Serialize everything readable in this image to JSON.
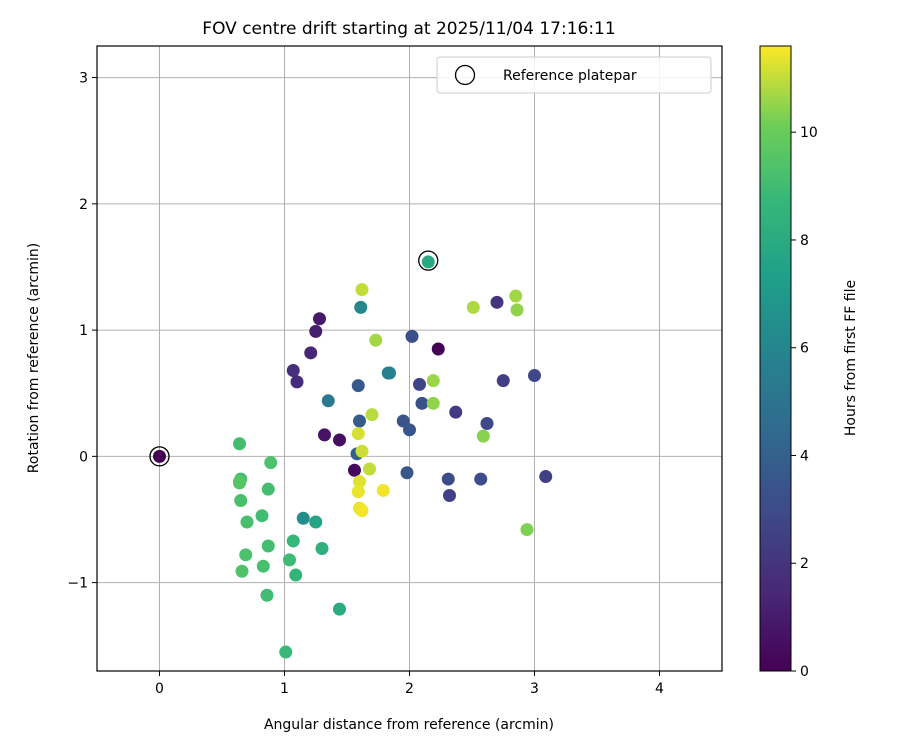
{
  "chart_data": {
    "type": "scatter",
    "title": "FOV centre drift starting at 2025/11/04 17:16:11",
    "xlabel": "Angular distance from reference (arcmin)",
    "ylabel": "Rotation from reference (arcmin)",
    "xlim": [
      -0.5,
      4.5
    ],
    "ylim": [
      -1.7,
      3.25
    ],
    "xticks": [
      0,
      1,
      2,
      3,
      4
    ],
    "yticks": [
      -1,
      0,
      1,
      2,
      3
    ],
    "xtick_labels": [
      "0",
      "1",
      "2",
      "3",
      "4"
    ],
    "ytick_labels": [
      "−1",
      "0",
      "1",
      "2",
      "3"
    ],
    "grid": true,
    "legend": {
      "label": "Reference platepar",
      "location": "top-right",
      "marker": "open-circle"
    },
    "reference_point": {
      "x": 0,
      "y": 0
    },
    "reference_markers": [
      {
        "x": 0,
        "y": 0
      },
      {
        "x": 2.15,
        "y": 1.55
      }
    ],
    "colorbar": {
      "label": "Hours from first FF file",
      "colormap": "viridis",
      "range": [
        0,
        11.6
      ],
      "ticks": [
        0,
        2,
        4,
        6,
        8,
        10
      ],
      "tick_labels": [
        "0",
        "2",
        "4",
        "6",
        "8",
        "10"
      ]
    },
    "points": [
      {
        "x": 0.0,
        "y": 0.0,
        "hours": 0.0
      },
      {
        "x": 2.23,
        "y": 0.85,
        "hours": 0.1
      },
      {
        "x": 1.56,
        "y": -0.11,
        "hours": 0.3
      },
      {
        "x": 1.44,
        "y": 0.13,
        "hours": 0.5
      },
      {
        "x": 1.32,
        "y": 0.17,
        "hours": 0.7
      },
      {
        "x": 1.28,
        "y": 1.09,
        "hours": 0.9
      },
      {
        "x": 1.25,
        "y": 0.99,
        "hours": 1.1
      },
      {
        "x": 1.21,
        "y": 0.82,
        "hours": 1.4
      },
      {
        "x": 1.1,
        "y": 0.59,
        "hours": 1.6
      },
      {
        "x": 1.07,
        "y": 0.68,
        "hours": 1.8
      },
      {
        "x": 2.7,
        "y": 1.22,
        "hours": 2.0
      },
      {
        "x": 2.37,
        "y": 0.35,
        "hours": 2.3
      },
      {
        "x": 3.09,
        "y": -0.16,
        "hours": 2.5
      },
      {
        "x": 2.32,
        "y": -0.31,
        "hours": 2.6
      },
      {
        "x": 2.75,
        "y": 0.6,
        "hours": 2.4
      },
      {
        "x": 2.08,
        "y": 0.57,
        "hours": 2.7
      },
      {
        "x": 3.0,
        "y": 0.64,
        "hours": 2.8
      },
      {
        "x": 2.62,
        "y": 0.26,
        "hours": 2.9
      },
      {
        "x": 2.31,
        "y": -0.18,
        "hours": 3.0
      },
      {
        "x": 2.57,
        "y": -0.18,
        "hours": 3.1
      },
      {
        "x": 2.02,
        "y": 0.95,
        "hours": 3.2
      },
      {
        "x": 2.1,
        "y": 0.42,
        "hours": 3.3
      },
      {
        "x": 1.95,
        "y": 0.28,
        "hours": 3.4
      },
      {
        "x": 2.0,
        "y": 0.21,
        "hours": 3.5
      },
      {
        "x": 1.98,
        "y": -0.13,
        "hours": 3.6
      },
      {
        "x": 1.59,
        "y": 0.56,
        "hours": 3.7
      },
      {
        "x": 1.6,
        "y": 0.28,
        "hours": 3.8
      },
      {
        "x": 1.58,
        "y": 0.02,
        "hours": 3.9
      },
      {
        "x": 1.84,
        "y": 0.66,
        "hours": 5.5
      },
      {
        "x": 1.35,
        "y": 0.44,
        "hours": 5.3
      },
      {
        "x": 1.61,
        "y": 1.18,
        "hours": 6.0
      },
      {
        "x": 1.15,
        "y": -0.49,
        "hours": 6.4
      },
      {
        "x": 1.83,
        "y": 0.66,
        "hours": 5.7
      },
      {
        "x": 2.15,
        "y": 1.54,
        "hours": 7.9
      },
      {
        "x": 1.25,
        "y": -0.52,
        "hours": 7.6
      },
      {
        "x": 1.44,
        "y": -1.21,
        "hours": 8.0
      },
      {
        "x": 1.3,
        "y": -0.73,
        "hours": 8.3
      },
      {
        "x": 1.01,
        "y": -1.55,
        "hours": 8.8
      },
      {
        "x": 1.09,
        "y": -0.94,
        "hours": 8.6
      },
      {
        "x": 1.07,
        "y": -0.67,
        "hours": 8.7
      },
      {
        "x": 1.04,
        "y": -0.82,
        "hours": 8.9
      },
      {
        "x": 0.86,
        "y": -1.1,
        "hours": 9.0
      },
      {
        "x": 0.87,
        "y": -0.71,
        "hours": 9.1
      },
      {
        "x": 0.83,
        "y": -0.87,
        "hours": 9.2
      },
      {
        "x": 0.82,
        "y": -0.47,
        "hours": 9.0
      },
      {
        "x": 0.87,
        "y": -0.26,
        "hours": 9.1
      },
      {
        "x": 0.89,
        "y": -0.05,
        "hours": 9.3
      },
      {
        "x": 0.7,
        "y": -0.52,
        "hours": 9.2
      },
      {
        "x": 0.69,
        "y": -0.78,
        "hours": 9.3
      },
      {
        "x": 0.66,
        "y": -0.91,
        "hours": 9.4
      },
      {
        "x": 0.65,
        "y": -0.35,
        "hours": 9.2
      },
      {
        "x": 0.65,
        "y": -0.18,
        "hours": 9.0
      },
      {
        "x": 0.64,
        "y": -0.21,
        "hours": 9.4
      },
      {
        "x": 0.64,
        "y": 0.1,
        "hours": 9.1
      },
      {
        "x": 0.64,
        "y": -0.2,
        "hours": 9.6
      },
      {
        "x": 2.94,
        "y": -0.58,
        "hours": 10.3
      },
      {
        "x": 2.59,
        "y": 0.16,
        "hours": 10.4
      },
      {
        "x": 2.19,
        "y": 0.42,
        "hours": 10.5
      },
      {
        "x": 2.19,
        "y": 0.6,
        "hours": 10.6
      },
      {
        "x": 2.86,
        "y": 1.16,
        "hours": 10.5
      },
      {
        "x": 2.85,
        "y": 1.27,
        "hours": 10.7
      },
      {
        "x": 2.51,
        "y": 1.18,
        "hours": 10.8
      },
      {
        "x": 1.73,
        "y": 0.92,
        "hours": 10.7
      },
      {
        "x": 1.7,
        "y": 0.33,
        "hours": 10.9
      },
      {
        "x": 1.68,
        "y": -0.1,
        "hours": 11.0
      },
      {
        "x": 1.62,
        "y": 1.32,
        "hours": 11.0
      },
      {
        "x": 1.62,
        "y": 0.04,
        "hours": 11.1
      },
      {
        "x": 1.59,
        "y": 0.18,
        "hours": 11.2
      },
      {
        "x": 1.6,
        "y": -0.2,
        "hours": 11.3
      },
      {
        "x": 1.59,
        "y": -0.28,
        "hours": 11.4
      },
      {
        "x": 1.6,
        "y": -0.41,
        "hours": 11.4
      },
      {
        "x": 1.62,
        "y": -0.43,
        "hours": 11.5
      },
      {
        "x": 1.79,
        "y": -0.27,
        "hours": 11.5
      }
    ]
  }
}
